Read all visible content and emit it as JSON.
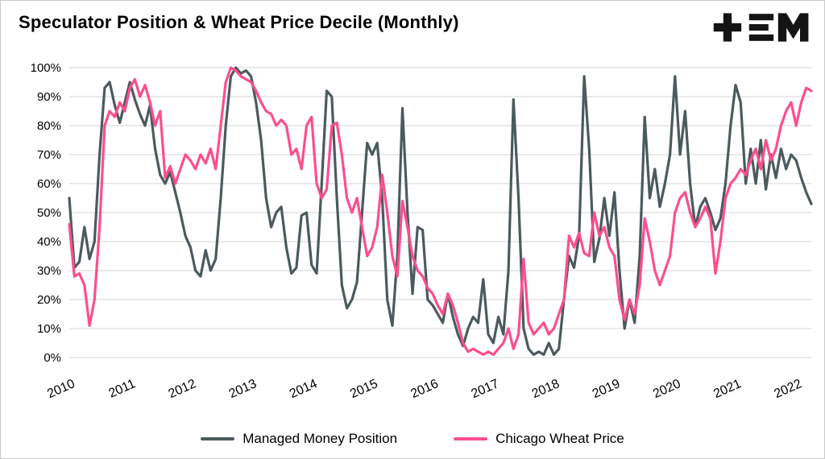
{
  "title": "Speculator Position & Wheat Price Decile (Monthly)",
  "logo": {
    "name": "tem-logo"
  },
  "chart_data": {
    "type": "line",
    "title": "Speculator Position & Wheat Price Decile (Monthly)",
    "xlabel": "",
    "ylabel": "",
    "ylim": [
      0,
      100
    ],
    "grid": true,
    "legend_position": "bottom",
    "x_start_year": 2010,
    "x_frequency": "monthly",
    "x_tick_labels": [
      "2010",
      "2011",
      "2012",
      "2013",
      "2014",
      "2015",
      "2016",
      "2017",
      "2018",
      "2019",
      "2020",
      "2021",
      "2022"
    ],
    "y_tick_labels": [
      "0%",
      "10%",
      "20%",
      "30%",
      "40%",
      "50%",
      "60%",
      "70%",
      "80%",
      "90%",
      "100%"
    ],
    "series": [
      {
        "name": "Managed Money Position",
        "color": "#4b5a5d",
        "values": [
          55,
          31,
          33,
          45,
          34,
          40,
          70,
          93,
          95,
          87,
          81,
          88,
          95,
          89,
          84,
          80,
          87,
          72,
          63,
          60,
          64,
          57,
          50,
          42,
          38,
          30,
          28,
          37,
          30,
          34,
          55,
          80,
          97,
          100,
          98,
          99,
          97,
          88,
          75,
          55,
          45,
          50,
          52,
          38,
          29,
          31,
          49,
          50,
          32,
          29,
          60,
          92,
          90,
          55,
          25,
          17,
          20,
          26,
          50,
          74,
          70,
          74,
          55,
          20,
          11,
          35,
          86,
          50,
          22,
          45,
          44,
          20,
          18,
          15,
          12,
          22,
          14,
          8,
          4,
          10,
          14,
          12,
          27,
          8,
          5,
          14,
          8,
          30,
          89,
          55,
          10,
          3,
          1,
          2,
          1,
          5,
          1,
          3,
          20,
          35,
          31,
          42,
          97,
          72,
          33,
          41,
          55,
          42,
          57,
          30,
          10,
          20,
          12,
          35,
          83,
          55,
          65,
          52,
          60,
          70,
          97,
          70,
          85,
          60,
          45,
          52,
          55,
          50,
          44,
          48,
          60,
          80,
          94,
          88,
          60,
          72,
          60,
          75,
          58,
          70,
          62,
          72,
          65,
          70,
          68,
          62,
          57,
          53
        ]
      },
      {
        "name": "Chicago Wheat Price",
        "color": "#fd4e8d",
        "values": [
          46,
          28,
          29,
          25,
          11,
          20,
          45,
          80,
          85,
          83,
          88,
          85,
          93,
          96,
          90,
          94,
          88,
          80,
          85,
          62,
          66,
          60,
          65,
          70,
          68,
          65,
          70,
          67,
          72,
          65,
          80,
          95,
          100,
          99,
          97,
          96,
          95,
          92,
          88,
          85,
          84,
          80,
          82,
          80,
          70,
          72,
          65,
          80,
          83,
          60,
          55,
          58,
          80,
          81,
          70,
          55,
          50,
          55,
          45,
          35,
          38,
          45,
          63,
          50,
          35,
          28,
          54,
          45,
          35,
          30,
          28,
          24,
          22,
          18,
          15,
          22,
          18,
          12,
          5,
          2,
          3,
          2,
          1,
          2,
          1,
          3,
          5,
          10,
          3,
          8,
          34,
          12,
          8,
          10,
          12,
          8,
          10,
          15,
          20,
          42,
          38,
          43,
          36,
          35,
          50,
          42,
          45,
          38,
          35,
          20,
          13,
          20,
          15,
          25,
          48,
          40,
          30,
          25,
          30,
          35,
          50,
          55,
          57,
          50,
          45,
          48,
          52,
          48,
          29,
          40,
          55,
          60,
          62,
          65,
          63,
          68,
          72,
          65,
          75,
          68,
          72,
          80,
          85,
          88,
          80,
          88,
          93,
          92
        ]
      }
    ]
  }
}
